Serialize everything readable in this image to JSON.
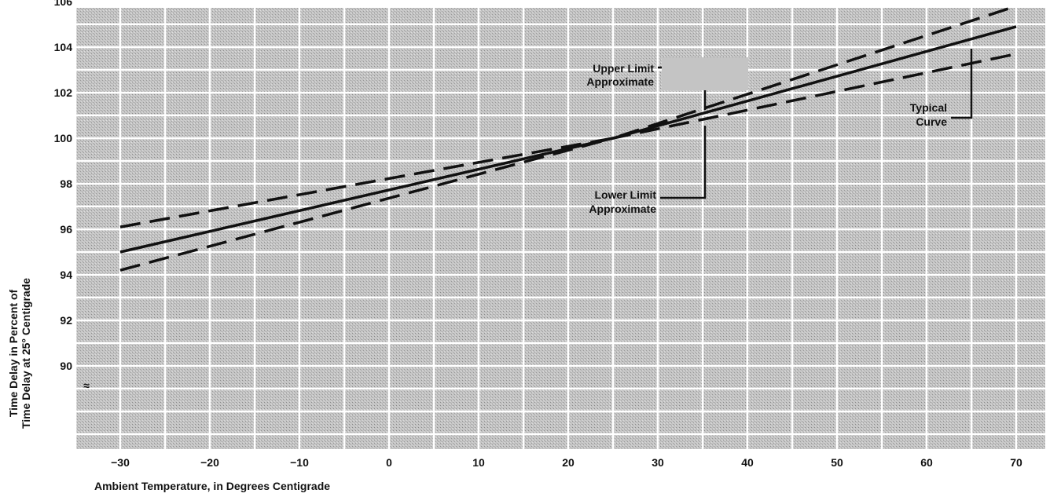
{
  "chart_data": {
    "type": "line",
    "title": "",
    "xlabel": "Ambient Temperature, in Degrees Centigrade",
    "ylabel_lines": [
      "Time Delay in Percent of",
      "Time Delay at 25° Centigrade"
    ],
    "x_ticks": [
      -30,
      -20,
      -10,
      0,
      10,
      20,
      30,
      40,
      50,
      60,
      70
    ],
    "x_tick_labels": [
      "−30",
      "−20",
      "−10",
      "0",
      "10",
      "20",
      "30",
      "40",
      "50",
      "60",
      "70"
    ],
    "y_ticks": [
      90,
      92,
      94,
      96,
      98,
      100,
      102,
      104,
      106
    ],
    "y_tick_labels": [
      "90",
      "92",
      "94",
      "96",
      "98",
      "100",
      "102",
      "104",
      "106"
    ],
    "xlim": [
      -35,
      72
    ],
    "ylim": [
      86,
      106
    ],
    "y_axis_break_symbol": "≈",
    "grid": true,
    "legend": "none",
    "series": [
      {
        "style": "dashed",
        "x": [
          -30,
          25,
          70
        ],
        "y": [
          96.1,
          100.0,
          105.8
        ]
      },
      {
        "style": "solid",
        "x": [
          -30,
          25,
          70
        ],
        "y": [
          95.0,
          100.0,
          104.9
        ]
      },
      {
        "style": "dashed",
        "x": [
          -30,
          25,
          70
        ],
        "y": [
          94.2,
          100.0,
          103.7
        ]
      }
    ],
    "annotations": [
      {
        "lines": [
          "Upper Limit",
          "Approximate"
        ]
      },
      {
        "lines": [
          "Lower Limit",
          "Approximate"
        ]
      },
      {
        "lines": [
          "Typical",
          "Curve"
        ]
      }
    ]
  }
}
